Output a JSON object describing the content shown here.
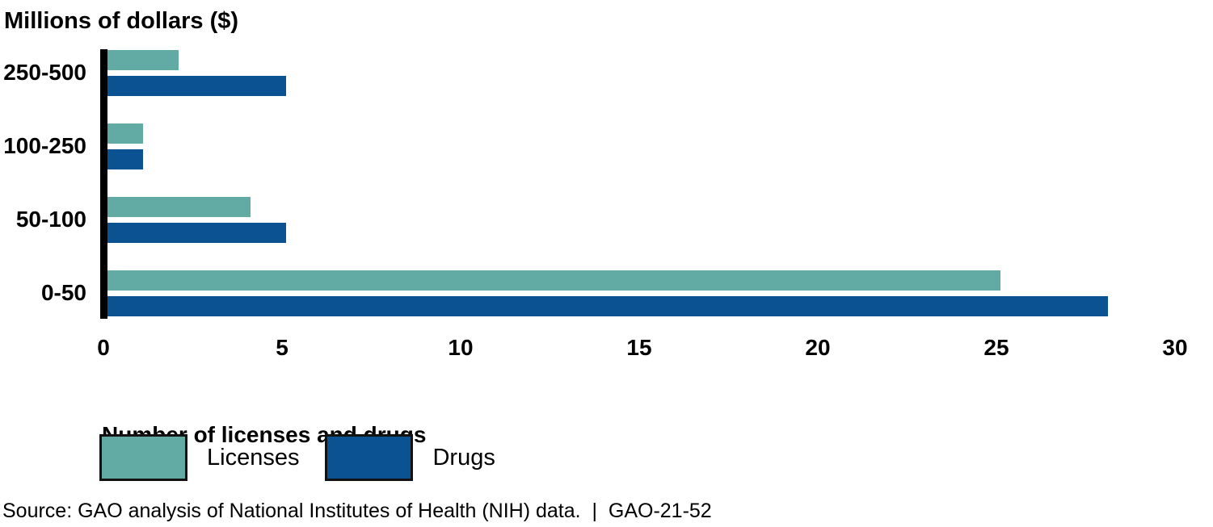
{
  "chart_data": {
    "type": "bar",
    "orientation": "horizontal",
    "title": "Millions of dollars ($)",
    "xlabel": "Number of licenses and drugs",
    "categories": [
      "250-500",
      "100-250",
      "50-100",
      "0-50"
    ],
    "series": [
      {
        "name": "Licenses",
        "color": "#62ABA4",
        "values": [
          2,
          1,
          4,
          25
        ]
      },
      {
        "name": "Drugs",
        "color": "#0A5291",
        "values": [
          5,
          1,
          5,
          28
        ]
      }
    ],
    "x_ticks": [
      0,
      5,
      10,
      15,
      20,
      25,
      30
    ],
    "xlim": [
      0,
      30
    ],
    "grid": false,
    "legend_position": "bottom",
    "axis_color": "#000000",
    "text_color": "#000000"
  },
  "source_note": "Source: GAO analysis of National Institutes of Health (NIH) data.  |  GAO-21-52"
}
